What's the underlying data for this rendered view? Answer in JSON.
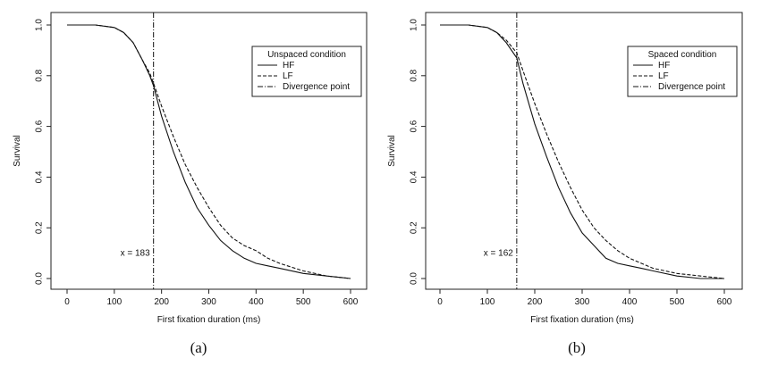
{
  "chart_data": [
    {
      "panel": "(a)",
      "type": "line",
      "xlabel": "First fixation duration (ms)",
      "ylabel": "Survival",
      "xlim": [
        0,
        600
      ],
      "ylim": [
        0,
        1
      ],
      "xticks": [
        0,
        100,
        200,
        300,
        400,
        500,
        600
      ],
      "yticks": [
        0.0,
        0.2,
        0.4,
        0.6,
        0.8,
        1.0
      ],
      "ytick_labels": [
        "0.0",
        "0.2",
        "0.4",
        "0.6",
        "0.8",
        "1.0"
      ],
      "legend_title": "Unspaced condition",
      "legend_position": "top-right",
      "divergence_x": 183,
      "divergence_label": "x = 183",
      "series": [
        {
          "name": "HF",
          "style": "solid",
          "x": [
            0,
            60,
            100,
            120,
            140,
            160,
            175,
            183,
            200,
            225,
            250,
            275,
            300,
            325,
            350,
            375,
            400,
            425,
            450,
            500,
            550,
            600
          ],
          "y": [
            1.0,
            1.0,
            0.99,
            0.97,
            0.93,
            0.86,
            0.8,
            0.76,
            0.64,
            0.5,
            0.38,
            0.28,
            0.21,
            0.15,
            0.11,
            0.08,
            0.06,
            0.05,
            0.04,
            0.02,
            0.01,
            0.0
          ]
        },
        {
          "name": "LF",
          "style": "dashed",
          "x": [
            0,
            60,
            100,
            120,
            140,
            160,
            175,
            183,
            200,
            225,
            250,
            275,
            300,
            325,
            350,
            375,
            400,
            425,
            450,
            500,
            550,
            600
          ],
          "y": [
            1.0,
            1.0,
            0.99,
            0.97,
            0.93,
            0.86,
            0.81,
            0.77,
            0.68,
            0.56,
            0.45,
            0.36,
            0.28,
            0.21,
            0.16,
            0.13,
            0.11,
            0.08,
            0.06,
            0.03,
            0.01,
            0.0
          ]
        },
        {
          "name": "Divergence point",
          "style": "dashdot"
        }
      ]
    },
    {
      "panel": "(b)",
      "type": "line",
      "xlabel": "First fixation duration (ms)",
      "ylabel": "Survival",
      "xlim": [
        0,
        600
      ],
      "ylim": [
        0,
        1
      ],
      "xticks": [
        0,
        100,
        200,
        300,
        400,
        500,
        600
      ],
      "yticks": [
        0.0,
        0.2,
        0.4,
        0.6,
        0.8,
        1.0
      ],
      "ytick_labels": [
        "0.0",
        "0.2",
        "0.4",
        "0.6",
        "0.8",
        "1.0"
      ],
      "legend_title": "Spaced condition",
      "legend_position": "top-right",
      "divergence_x": 162,
      "divergence_label": "x = 162",
      "series": [
        {
          "name": "HF",
          "style": "solid",
          "x": [
            0,
            60,
            100,
            120,
            140,
            162,
            175,
            200,
            225,
            250,
            275,
            300,
            325,
            350,
            375,
            400,
            425,
            450,
            500,
            550,
            600
          ],
          "y": [
            1.0,
            1.0,
            0.99,
            0.97,
            0.93,
            0.87,
            0.77,
            0.61,
            0.48,
            0.36,
            0.26,
            0.18,
            0.13,
            0.08,
            0.06,
            0.05,
            0.04,
            0.03,
            0.01,
            0.0,
            0.0
          ]
        },
        {
          "name": "LF",
          "style": "dashed",
          "x": [
            0,
            60,
            100,
            120,
            140,
            162,
            175,
            200,
            225,
            250,
            275,
            300,
            325,
            350,
            375,
            400,
            425,
            450,
            500,
            550,
            600
          ],
          "y": [
            1.0,
            1.0,
            0.99,
            0.97,
            0.94,
            0.89,
            0.82,
            0.69,
            0.57,
            0.46,
            0.36,
            0.27,
            0.2,
            0.15,
            0.11,
            0.08,
            0.06,
            0.04,
            0.02,
            0.01,
            0.0
          ]
        },
        {
          "name": "Divergence point",
          "style": "dashdot"
        }
      ]
    }
  ]
}
